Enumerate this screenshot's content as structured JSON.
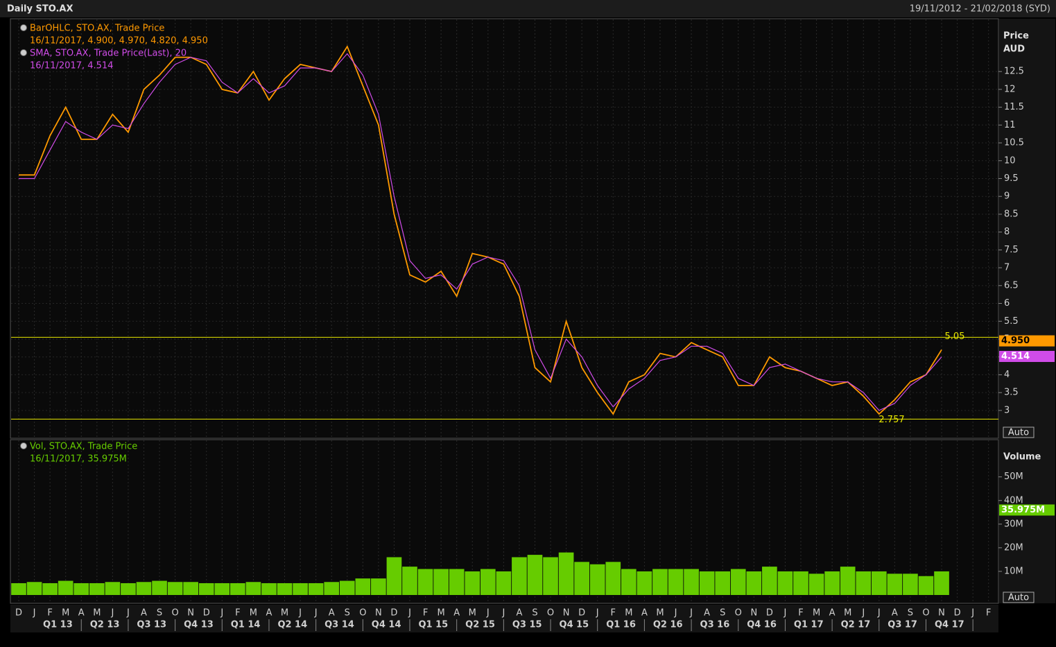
{
  "header": {
    "title": "Daily STO.AX",
    "range": "19/11/2012 - 21/02/2018 (SYD)"
  },
  "chart_data": [
    {
      "type": "line",
      "ylabel": "Price",
      "yunit": "AUD",
      "auto_button": "Auto",
      "categories": [
        "D",
        "J",
        "F",
        "M",
        "A",
        "M",
        "J",
        "J",
        "A",
        "S",
        "O",
        "N",
        "D",
        "J",
        "F",
        "M",
        "A",
        "M",
        "J",
        "J",
        "A",
        "S",
        "O",
        "N",
        "D",
        "J",
        "F",
        "M",
        "A",
        "M",
        "J",
        "J",
        "A",
        "S",
        "O",
        "N",
        "D",
        "J",
        "F",
        "M",
        "A",
        "M",
        "J",
        "J",
        "A",
        "S",
        "O",
        "N",
        "D",
        "J",
        "F",
        "M",
        "A",
        "M",
        "J",
        "J",
        "A",
        "S",
        "O",
        "N",
        "D",
        "J",
        "F"
      ],
      "quarters": [
        "Q1 13",
        "Q2 13",
        "Q3 13",
        "Q4 13",
        "Q1 14",
        "Q2 14",
        "Q3 14",
        "Q4 14",
        "Q1 15",
        "Q2 15",
        "Q3 15",
        "Q4 15",
        "Q1 16",
        "Q2 16",
        "Q3 16",
        "Q4 16",
        "Q1 17",
        "Q2 17",
        "Q3 17",
        "Q4 17"
      ],
      "ylim": [
        2.22,
        13.98
      ],
      "yticks": [
        3,
        3.5,
        4,
        4.5,
        5,
        5.5,
        6,
        6.5,
        7,
        7.5,
        8,
        8.5,
        9,
        9.5,
        10,
        10.5,
        11,
        11.5,
        12,
        12.5
      ],
      "grid": true,
      "reference_lines": [
        {
          "value": 5.05,
          "label": "5.05",
          "color": "#e8e800"
        },
        {
          "value": 2.757,
          "label": "2.757",
          "color": "#e8e800"
        }
      ],
      "series": [
        {
          "name": "BarOHLC, STO.AX, Trade Price",
          "color": "#ff9900",
          "legend_label": "16/11/2017, 4.900, 4.970, 4.820, 4.950",
          "last_value": 4.95,
          "last_label": "4.950",
          "values": [
            9.6,
            9.6,
            10.7,
            11.5,
            10.6,
            10.6,
            11.3,
            10.8,
            12.0,
            12.4,
            12.9,
            12.9,
            12.7,
            12.0,
            11.9,
            12.5,
            11.7,
            12.3,
            12.7,
            12.6,
            12.5,
            13.2,
            12.1,
            11.0,
            8.5,
            6.8,
            6.6,
            6.9,
            6.2,
            7.4,
            7.3,
            7.1,
            6.2,
            4.2,
            3.8,
            5.5,
            4.2,
            3.5,
            2.9,
            3.8,
            4.0,
            4.6,
            4.5,
            4.9,
            4.7,
            4.5,
            3.7,
            3.7,
            4.5,
            4.2,
            4.1,
            3.9,
            3.7,
            3.8,
            3.4,
            2.9,
            3.3,
            3.8,
            4.0,
            4.7,
            null,
            null,
            null
          ]
        },
        {
          "name": "SMA, STO.AX, Trade Price(Last), 20",
          "color": "#d04ce8",
          "legend_label": "16/11/2017, 4.514",
          "last_value": 4.514,
          "last_label": "4.514",
          "values": [
            9.5,
            9.5,
            10.3,
            11.1,
            10.8,
            10.6,
            11.0,
            10.9,
            11.6,
            12.2,
            12.7,
            12.9,
            12.8,
            12.2,
            11.9,
            12.3,
            11.9,
            12.1,
            12.6,
            12.6,
            12.5,
            13.0,
            12.4,
            11.3,
            9.0,
            7.2,
            6.7,
            6.8,
            6.4,
            7.1,
            7.3,
            7.2,
            6.5,
            4.7,
            3.9,
            5.0,
            4.5,
            3.7,
            3.1,
            3.6,
            3.9,
            4.4,
            4.5,
            4.8,
            4.8,
            4.6,
            3.9,
            3.7,
            4.2,
            4.3,
            4.1,
            3.9,
            3.8,
            3.8,
            3.5,
            3.0,
            3.2,
            3.7,
            4.0,
            4.5,
            null,
            null,
            null
          ]
        }
      ]
    },
    {
      "type": "bar",
      "ylabel": "Volume",
      "auto_button": "Auto",
      "ylim": [
        0,
        64000000
      ],
      "yticks": [
        {
          "value": 10000000,
          "label": "10M"
        },
        {
          "value": 20000000,
          "label": "20M"
        },
        {
          "value": 30000000,
          "label": "30M"
        },
        {
          "value": 40000000,
          "label": "40M"
        },
        {
          "value": 50000000,
          "label": "50M"
        }
      ],
      "series": [
        {
          "name": "Vol, STO.AX, Trade Price",
          "color": "#66cc00",
          "legend_label": "16/11/2017, 35.975M",
          "last_value": 35975000,
          "last_label": "35.975M",
          "values": [
            5000000,
            5500000,
            5000000,
            6000000,
            5000000,
            5000000,
            5500000,
            5000000,
            5500000,
            6000000,
            5500000,
            5500000,
            5000000,
            5000000,
            5000000,
            5500000,
            5000000,
            5000000,
            5000000,
            5000000,
            5500000,
            6000000,
            7000000,
            7000000,
            16000000,
            12000000,
            11000000,
            11000000,
            11000000,
            10000000,
            11000000,
            10000000,
            16000000,
            17000000,
            16000000,
            18000000,
            14000000,
            13000000,
            14000000,
            11000000,
            10000000,
            11000000,
            11000000,
            11000000,
            10000000,
            10000000,
            11000000,
            10000000,
            12000000,
            10000000,
            10000000,
            9000000,
            10000000,
            12000000,
            10000000,
            10000000,
            9000000,
            9000000,
            8000000,
            10000000,
            null,
            null,
            null
          ]
        }
      ]
    }
  ]
}
